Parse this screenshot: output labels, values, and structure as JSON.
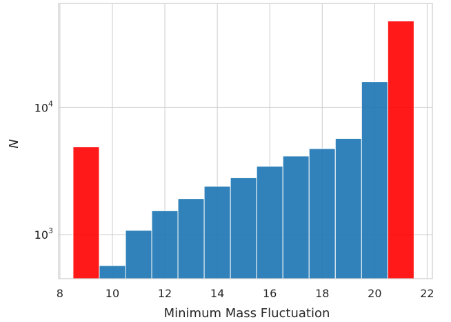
{
  "chart_data": {
    "type": "bar",
    "xlabel": "Minimum Mass Fluctuation",
    "ylabel": "N",
    "xlim": [
      7.95,
      22.2
    ],
    "ylim": [
      450,
      66000
    ],
    "yscale": "log",
    "grid": true,
    "xticks": [
      8,
      10,
      12,
      14,
      16,
      18,
      20,
      22
    ],
    "xtick_labels": [
      "8",
      "10",
      "12",
      "14",
      "16",
      "18",
      "20",
      "22"
    ],
    "yticks": [
      1000,
      10000
    ],
    "ytick_labels": [
      {
        "base": "10",
        "exp": "3"
      },
      {
        "base": "10",
        "exp": "4"
      }
    ],
    "bins": [
      {
        "left": 8.5,
        "right": 9.5,
        "value": 4900,
        "color": "#ff0000"
      },
      {
        "left": 9.5,
        "right": 10.5,
        "value": 570,
        "color": "#1f77b4"
      },
      {
        "left": 10.5,
        "right": 11.5,
        "value": 1080,
        "color": "#1f77b4"
      },
      {
        "left": 11.5,
        "right": 12.5,
        "value": 1540,
        "color": "#1f77b4"
      },
      {
        "left": 12.5,
        "right": 13.5,
        "value": 1920,
        "color": "#1f77b4"
      },
      {
        "left": 13.5,
        "right": 14.5,
        "value": 2400,
        "color": "#1f77b4"
      },
      {
        "left": 14.5,
        "right": 15.5,
        "value": 2800,
        "color": "#1f77b4"
      },
      {
        "left": 15.5,
        "right": 16.5,
        "value": 3450,
        "color": "#1f77b4"
      },
      {
        "left": 16.5,
        "right": 17.5,
        "value": 4150,
        "color": "#1f77b4"
      },
      {
        "left": 17.5,
        "right": 18.5,
        "value": 4750,
        "color": "#1f77b4"
      },
      {
        "left": 18.5,
        "right": 19.5,
        "value": 5700,
        "color": "#1f77b4"
      },
      {
        "left": 19.5,
        "right": 20.5,
        "value": 16000,
        "color": "#1f77b4"
      },
      {
        "left": 20.5,
        "right": 21.5,
        "value": 48000,
        "color": "#ff0000"
      }
    ],
    "colors": {
      "highlight": "#ff0000",
      "main": "#1f77b4",
      "grid": "#cccccc",
      "frame": "#cccccc"
    }
  }
}
